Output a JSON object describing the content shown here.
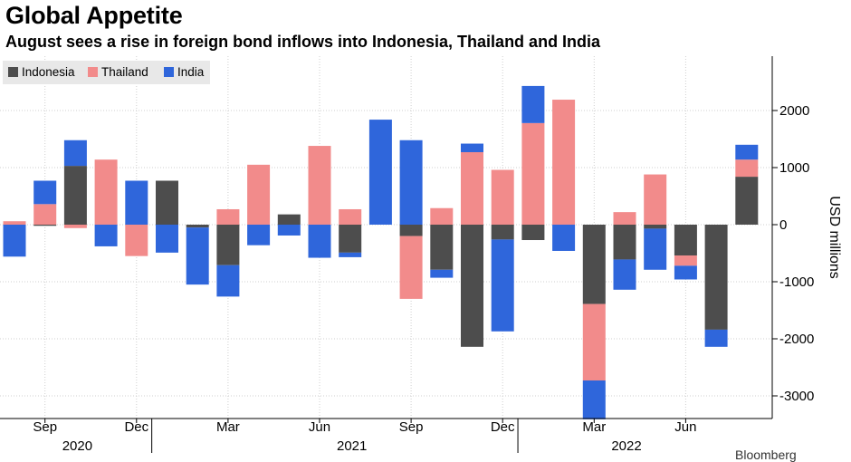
{
  "title": "Global Appetite",
  "subtitle": "August sees a rise in foreign bond inflows into Indonesia, Thailand and India",
  "footer": "Bloomberg",
  "legend": [
    {
      "name": "Indonesia",
      "color": "#4d4d4d"
    },
    {
      "name": "Thailand",
      "color": "#f28b8b"
    },
    {
      "name": "India",
      "color": "#2f66db"
    }
  ],
  "chart_data": {
    "type": "bar",
    "stacked": true,
    "categories": [
      "Aug 2020",
      "Sep 2020",
      "Oct 2020",
      "Nov 2020",
      "Dec 2020",
      "Jan 2021",
      "Feb 2021",
      "Mar 2021",
      "Apr 2021",
      "May 2021",
      "Jun 2021",
      "Jul 2021",
      "Aug 2021",
      "Sep 2021",
      "Oct 2021",
      "Nov 2021",
      "Dec 2021",
      "Jan 2022",
      "Feb 2022",
      "Mar 2022",
      "Apr 2022",
      "May 2022",
      "Jun 2022",
      "Jul 2022",
      "Aug 2022"
    ],
    "series": [
      {
        "name": "Indonesia",
        "values": [
          0,
          -20,
          1030,
          0,
          0,
          770,
          -50,
          -710,
          0,
          180,
          0,
          -490,
          0,
          -200,
          -790,
          -2140,
          -260,
          -270,
          0,
          -1390,
          -610,
          -70,
          -540,
          -1840,
          840
        ]
      },
      {
        "name": "Thailand",
        "values": [
          60,
          360,
          -60,
          1140,
          -550,
          0,
          0,
          270,
          1050,
          0,
          1380,
          270,
          0,
          -1100,
          290,
          1270,
          960,
          1780,
          2190,
          -1340,
          220,
          880,
          -180,
          0,
          300
        ]
      },
      {
        "name": "India",
        "values": [
          -560,
          410,
          450,
          -380,
          770,
          -490,
          -1000,
          -550,
          -360,
          -190,
          -580,
          -80,
          1840,
          1480,
          -140,
          150,
          -1610,
          650,
          -460,
          -680,
          -530,
          -720,
          -240,
          -300,
          260
        ]
      }
    ],
    "x_tick_labels": [
      "Sep",
      "Dec",
      "Mar",
      "Jun",
      "Sep",
      "Dec",
      "Mar",
      "Jun"
    ],
    "x_year_labels": [
      "2020",
      "2021",
      "2022"
    ],
    "ylabel": "USD millions",
    "ylim": [
      -3300,
      2900
    ],
    "y_ticks": [
      2000,
      1000,
      0,
      -1000,
      -2000,
      -3000
    ],
    "y_axis_position": "right",
    "grid": true,
    "legend_position": "top-left"
  }
}
